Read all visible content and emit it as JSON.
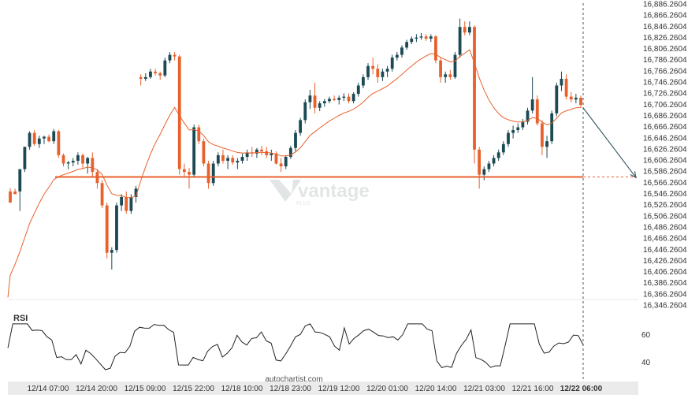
{
  "chart_data": {
    "type": "candlestick",
    "ylim": [
      16346.2604,
      16886.2604
    ],
    "y_ticks": [
      "16,886.2604",
      "16,866.2604",
      "16,846.2604",
      "16,826.2604",
      "16,806.2604",
      "16,786.2604",
      "16,766.2604",
      "16,746.2604",
      "16,726.2604",
      "16,706.2604",
      "16,686.2604",
      "16,666.2604",
      "16,646.2604",
      "16,626.2604",
      "16,606.2604",
      "16,586.2604",
      "16,566.2604",
      "16,546.2604",
      "16,526.2604",
      "16,506.2604",
      "16,486.2604",
      "16,466.2604",
      "16,446.2604",
      "16,426.2604",
      "16,406.2604",
      "16,386.2604",
      "16,366.2604",
      "16,346.2604"
    ],
    "x_ticks": [
      "12/14 07:00",
      "12/14 20:00",
      "12/15 09:00",
      "12/15 22:00",
      "12/18 10:00",
      "12/18 23:00",
      "12/19 12:00",
      "12/20 01:00",
      "12/20 14:00",
      "12/21 03:00",
      "12/21 16:00",
      "12/22 06:00"
    ],
    "support_level": 16576,
    "forecast_arrow": {
      "from": 16700,
      "to": 16575
    },
    "colors": {
      "up": "#1b4a55",
      "down": "#e8612c",
      "ma": "#e8612c",
      "level": "#e8612c",
      "rsi": "#222222"
    },
    "series": [
      {
        "type": "candles",
        "values": [
          [
            16550,
            16556,
            16535,
            16530
          ],
          [
            16550,
            16555,
            16548,
            16545
          ],
          [
            16550,
            16590,
            16515,
            16590
          ],
          [
            16590,
            16630,
            16585,
            16630
          ],
          [
            16630,
            16658,
            16625,
            16655
          ],
          [
            16655,
            16660,
            16632,
            16635
          ],
          [
            16635,
            16650,
            16628,
            16645
          ],
          [
            16645,
            16650,
            16635,
            16648
          ],
          [
            16648,
            16652,
            16638,
            16640
          ],
          [
            16640,
            16662,
            16635,
            16658
          ],
          [
            16658,
            16660,
            16610,
            16615
          ],
          [
            16615,
            16618,
            16595,
            16600
          ],
          [
            16600,
            16605,
            16590,
            16602
          ],
          [
            16602,
            16610,
            16595,
            16605
          ],
          [
            16605,
            16620,
            16598,
            16615
          ],
          [
            16615,
            16618,
            16590,
            16600
          ],
          [
            16600,
            16612,
            16582,
            16610
          ],
          [
            16610,
            16620,
            16575,
            16585
          ],
          [
            16585,
            16590,
            16555,
            16565
          ],
          [
            16565,
            16570,
            16520,
            16525
          ],
          [
            16525,
            16530,
            16430,
            16440
          ],
          [
            16440,
            16450,
            16410,
            16445
          ],
          [
            16445,
            16530,
            16440,
            16525
          ],
          [
            16525,
            16545,
            16515,
            16540
          ],
          [
            16540,
            16550,
            16510,
            16515
          ],
          [
            16515,
            16545,
            16510,
            16540
          ],
          [
            16540,
            16560,
            16530,
            16555
          ],
          [
            16755,
            16760,
            16740,
            16752
          ],
          [
            16752,
            16762,
            16748,
            16755
          ],
          [
            16755,
            16770,
            16752,
            16765
          ],
          [
            16765,
            16770,
            16758,
            16762
          ],
          [
            16762,
            16765,
            16750,
            16758
          ],
          [
            16758,
            16790,
            16755,
            16785
          ],
          [
            16785,
            16800,
            16780,
            16795
          ],
          [
            16795,
            16800,
            16785,
            16792
          ],
          [
            16792,
            16795,
            16580,
            16590
          ],
          [
            16590,
            16600,
            16575,
            16585
          ],
          [
            16585,
            16592,
            16555,
            16580
          ],
          [
            16580,
            16670,
            16575,
            16665
          ],
          [
            16665,
            16670,
            16635,
            16640
          ],
          [
            16640,
            16645,
            16595,
            16600
          ],
          [
            16600,
            16605,
            16555,
            16565
          ],
          [
            16565,
            16605,
            16560,
            16600
          ],
          [
            16600,
            16620,
            16595,
            16615
          ],
          [
            16615,
            16625,
            16600,
            16605
          ],
          [
            16605,
            16615,
            16590,
            16610
          ],
          [
            16610,
            16615,
            16598,
            16602
          ],
          [
            16602,
            16610,
            16590,
            16605
          ],
          [
            16605,
            16618,
            16600,
            16612
          ],
          [
            16612,
            16625,
            16605,
            16620
          ],
          [
            16620,
            16630,
            16612,
            16618
          ],
          [
            16618,
            16628,
            16610,
            16625
          ],
          [
            16625,
            16632,
            16615,
            16622
          ],
          [
            16622,
            16630,
            16610,
            16615
          ],
          [
            16615,
            16625,
            16605,
            16618
          ],
          [
            16618,
            16622,
            16598,
            16600
          ],
          [
            16600,
            16610,
            16585,
            16595
          ],
          [
            16595,
            16615,
            16590,
            16612
          ],
          [
            16612,
            16632,
            16608,
            16628
          ],
          [
            16628,
            16660,
            16622,
            16655
          ],
          [
            16655,
            16682,
            16650,
            16678
          ],
          [
            16678,
            16715,
            16672,
            16710
          ],
          [
            16710,
            16732,
            16698,
            16722
          ],
          [
            16722,
            16745,
            16690,
            16700
          ],
          [
            16700,
            16712,
            16694,
            16708
          ],
          [
            16708,
            16716,
            16702,
            16712
          ],
          [
            16712,
            16720,
            16708,
            16716
          ],
          [
            16716,
            16722,
            16712,
            16714
          ],
          [
            16714,
            16722,
            16706,
            16718
          ],
          [
            16718,
            16726,
            16712,
            16720
          ],
          [
            16720,
            16726,
            16708,
            16712
          ],
          [
            16712,
            16728,
            16708,
            16725
          ],
          [
            16725,
            16745,
            16720,
            16740
          ],
          [
            16740,
            16760,
            16735,
            16755
          ],
          [
            16755,
            16780,
            16750,
            16775
          ],
          [
            16775,
            16790,
            16760,
            16770
          ],
          [
            16770,
            16778,
            16745,
            16755
          ],
          [
            16755,
            16770,
            16748,
            16765
          ],
          [
            16765,
            16775,
            16755,
            16770
          ],
          [
            16770,
            16795,
            16765,
            16790
          ],
          [
            16790,
            16800,
            16785,
            16795
          ],
          [
            16795,
            16812,
            16790,
            16808
          ],
          [
            16808,
            16822,
            16804,
            16818
          ],
          [
            16818,
            16828,
            16814,
            16824
          ],
          [
            16824,
            16832,
            16818,
            16826
          ],
          [
            16826,
            16834,
            16822,
            16828
          ],
          [
            16828,
            16832,
            16820,
            16824
          ],
          [
            16824,
            16832,
            16818,
            16828
          ],
          [
            16828,
            16830,
            16780,
            16785
          ],
          [
            16785,
            16790,
            16745,
            16755
          ],
          [
            16755,
            16765,
            16745,
            16760
          ],
          [
            16760,
            16768,
            16750,
            16755
          ],
          [
            16755,
            16800,
            16752,
            16795
          ],
          [
            16795,
            16860,
            16790,
            16845
          ],
          [
            16845,
            16855,
            16830,
            16835
          ],
          [
            16835,
            16855,
            16830,
            16845
          ],
          [
            16845,
            16848,
            16600,
            16625
          ],
          [
            16625,
            16630,
            16555,
            16580
          ],
          [
            16580,
            16595,
            16570,
            16590
          ],
          [
            16590,
            16605,
            16585,
            16600
          ],
          [
            16600,
            16615,
            16595,
            16610
          ],
          [
            16610,
            16625,
            16605,
            16620
          ],
          [
            16620,
            16640,
            16615,
            16635
          ],
          [
            16635,
            16660,
            16630,
            16655
          ],
          [
            16655,
            16668,
            16645,
            16660
          ],
          [
            16660,
            16672,
            16655,
            16665
          ],
          [
            16665,
            16680,
            16660,
            16675
          ],
          [
            16675,
            16700,
            16670,
            16695
          ],
          [
            16695,
            16755,
            16690,
            16715
          ],
          [
            16715,
            16722,
            16668,
            16672
          ],
          [
            16672,
            16678,
            16615,
            16630
          ],
          [
            16630,
            16650,
            16610,
            16640
          ],
          [
            16640,
            16695,
            16635,
            16690
          ],
          [
            16690,
            16745,
            16685,
            16740
          ],
          [
            16740,
            16765,
            16730,
            16752
          ],
          [
            16752,
            16760,
            16715,
            16720
          ],
          [
            16720,
            16728,
            16710,
            16715
          ],
          [
            16715,
            16725,
            16708,
            16718
          ],
          [
            16718,
            16722,
            16700,
            16705
          ]
        ]
      }
    ]
  },
  "rsi": {
    "label": "RSI",
    "ticks": [
      "60",
      "40"
    ]
  },
  "watermark": {
    "brand": "vantage",
    "sub": "PLUS"
  },
  "source": "autochartist.com"
}
